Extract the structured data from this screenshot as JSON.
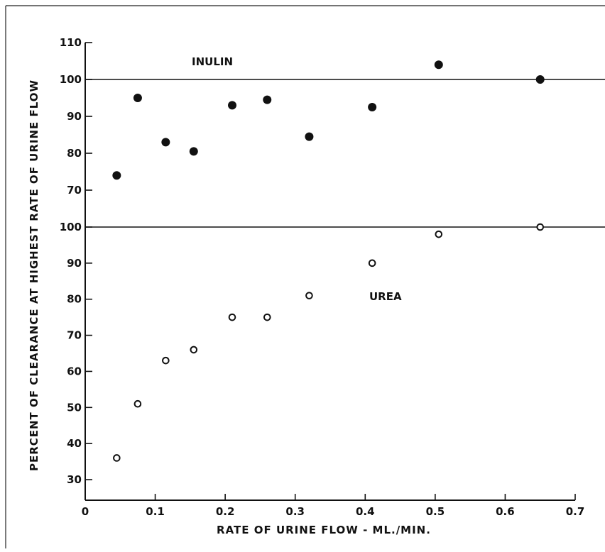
{
  "chart_data": {
    "type": "scatter",
    "xlabel": "RATE OF URINE FLOW - ML./MIN.",
    "ylabel": "PERCENT OF CLEARANCE AT HIGHEST RATE OF URINE FLOW",
    "xlim": [
      0,
      0.7
    ],
    "x_ticks": [
      "0",
      "0.1",
      "0.2",
      "0.3",
      "0.4",
      "0.5",
      "0.6",
      "0.7"
    ],
    "panels": [
      {
        "name": "INULIN",
        "marker": "filled-circle",
        "ylim": [
          70,
          110
        ],
        "y_ticks": [
          "70",
          "80",
          "90",
          "100",
          "110"
        ],
        "reference_line": 100,
        "points": [
          {
            "x": 0.045,
            "y": 74
          },
          {
            "x": 0.075,
            "y": 95
          },
          {
            "x": 0.115,
            "y": 83
          },
          {
            "x": 0.155,
            "y": 80.5
          },
          {
            "x": 0.21,
            "y": 93
          },
          {
            "x": 0.26,
            "y": 94.5
          },
          {
            "x": 0.32,
            "y": 84.5
          },
          {
            "x": 0.41,
            "y": 92.5
          },
          {
            "x": 0.505,
            "y": 104
          },
          {
            "x": 0.65,
            "y": 100
          }
        ]
      },
      {
        "name": "UREA",
        "marker": "open-circle",
        "ylim": [
          30,
          100
        ],
        "y_ticks": [
          "30",
          "40",
          "50",
          "60",
          "70",
          "80",
          "90",
          "100"
        ],
        "reference_line": 100,
        "points": [
          {
            "x": 0.045,
            "y": 36
          },
          {
            "x": 0.075,
            "y": 51
          },
          {
            "x": 0.115,
            "y": 63
          },
          {
            "x": 0.155,
            "y": 66
          },
          {
            "x": 0.21,
            "y": 75
          },
          {
            "x": 0.26,
            "y": 75
          },
          {
            "x": 0.32,
            "y": 81
          },
          {
            "x": 0.41,
            "y": 90
          },
          {
            "x": 0.505,
            "y": 98
          },
          {
            "x": 0.65,
            "y": 100
          }
        ]
      }
    ],
    "grid": false,
    "legend": "none"
  }
}
